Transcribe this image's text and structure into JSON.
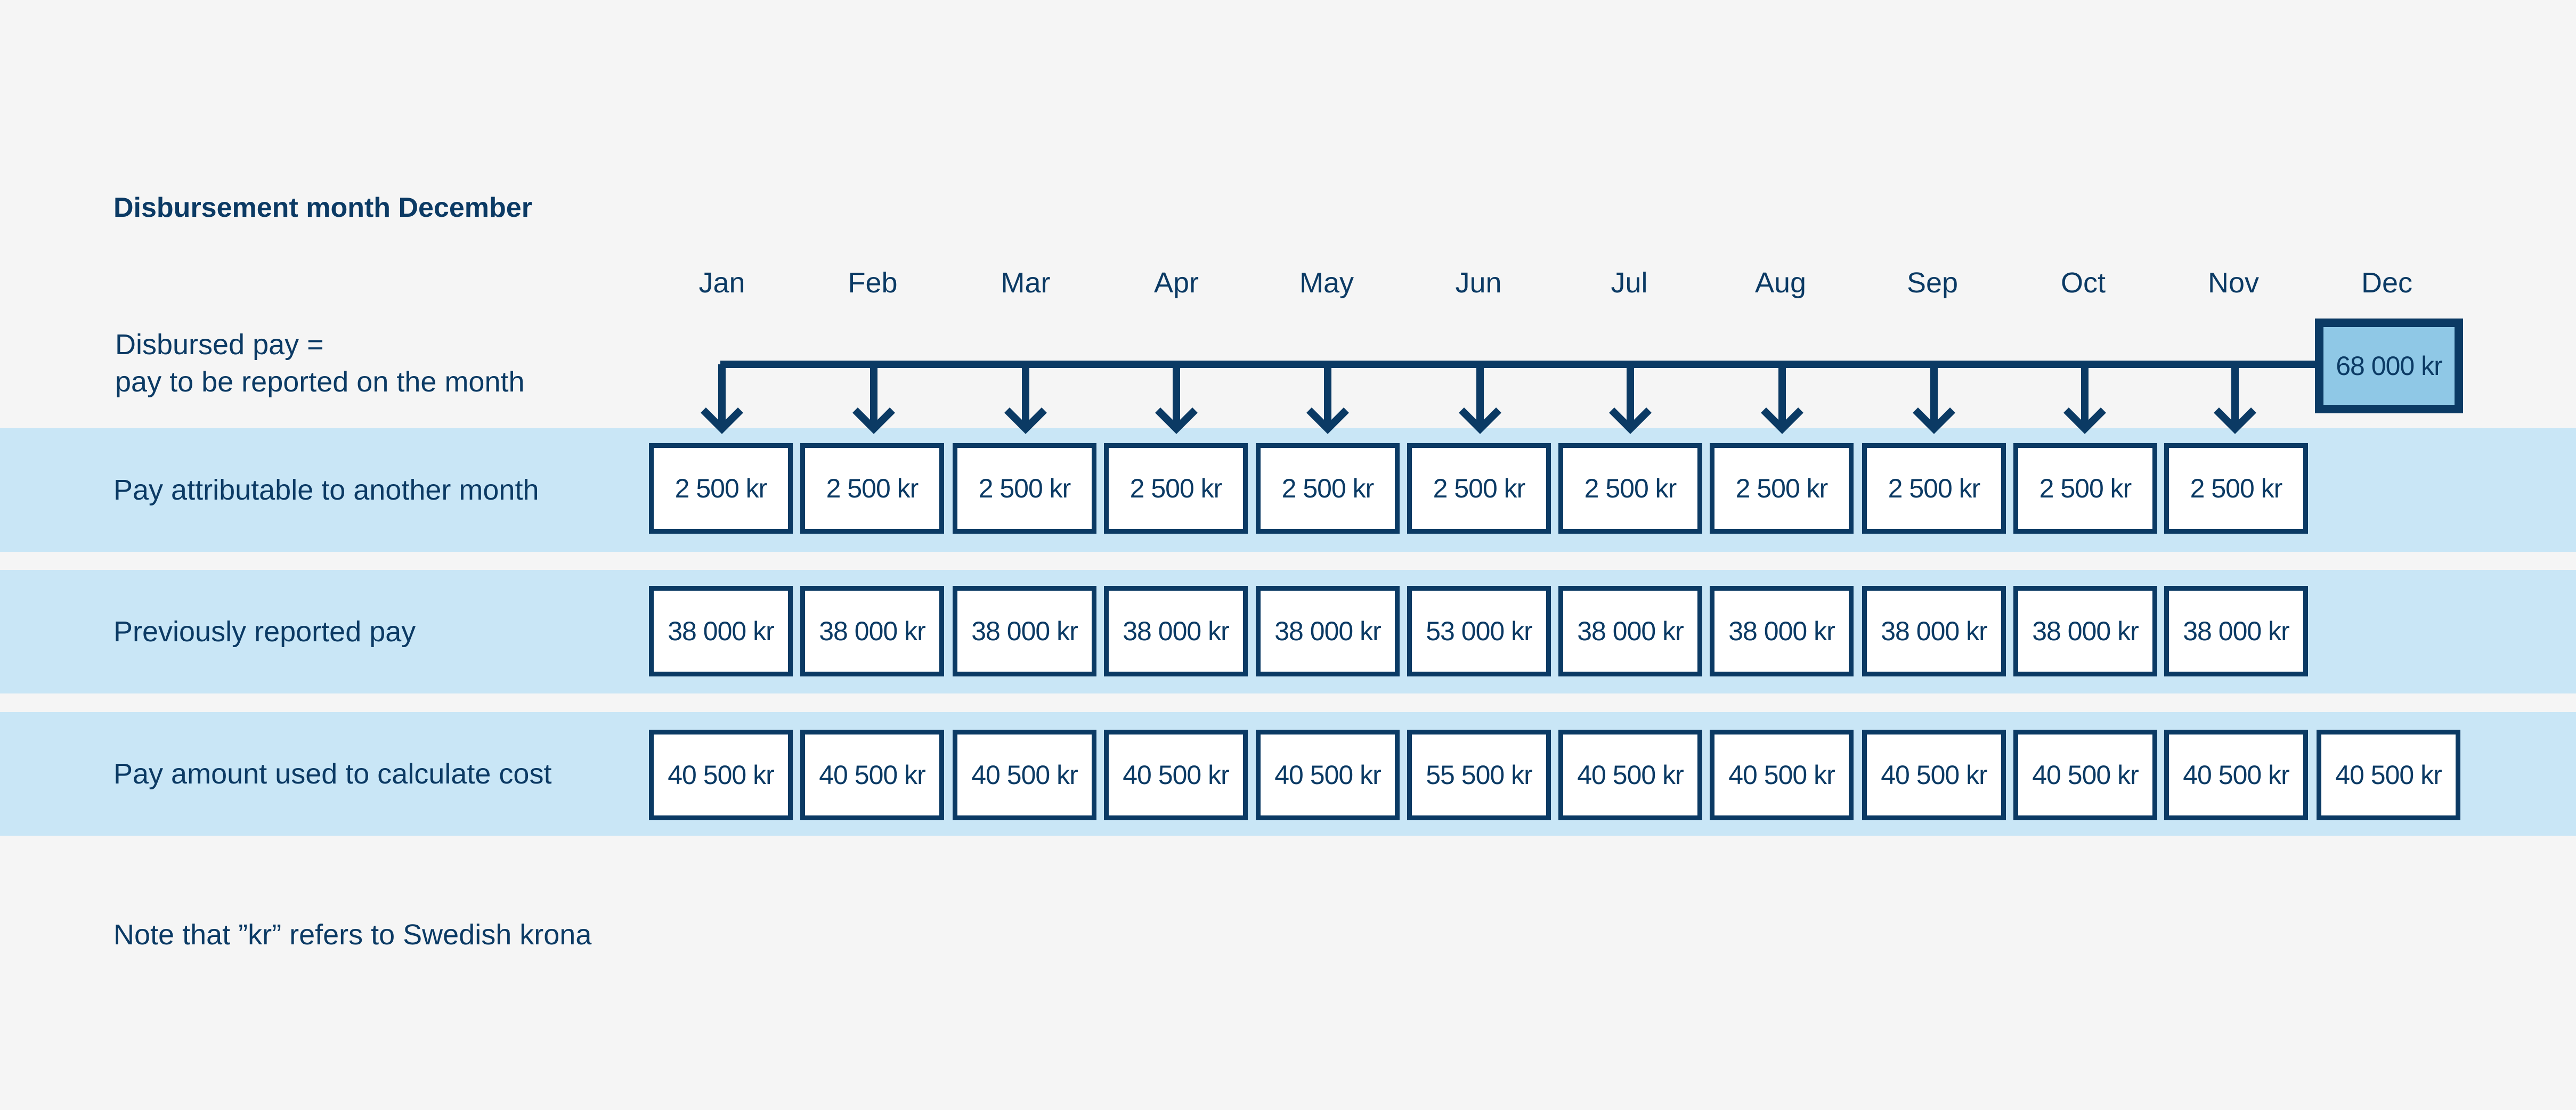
{
  "title": "Disbursement month December",
  "months": [
    "Jan",
    "Feb",
    "Mar",
    "Apr",
    "May",
    "Jun",
    "Jul",
    "Aug",
    "Sep",
    "Oct",
    "Nov",
    "Dec"
  ],
  "disbursed": {
    "label_line1": "Disbursed pay =",
    "label_line2": "pay to be reported on the month",
    "value": "68 000 kr"
  },
  "rows": [
    {
      "label": "Pay attributable to another month",
      "values": [
        "2 500 kr",
        "2 500 kr",
        "2 500 kr",
        "2 500 kr",
        "2 500 kr",
        "2 500 kr",
        "2 500 kr",
        "2 500 kr",
        "2 500 kr",
        "2 500 kr",
        "2 500 kr"
      ]
    },
    {
      "label": "Previously reported pay",
      "values": [
        "38 000 kr",
        "38 000 kr",
        "38 000 kr",
        "38 000 kr",
        "38 000 kr",
        "53 000 kr",
        "38 000 kr",
        "38 000 kr",
        "38 000 kr",
        "38 000 kr",
        "38 000 kr"
      ]
    },
    {
      "label": "Pay amount used to calculate cost",
      "values": [
        "40 500 kr",
        "40 500 kr",
        "40 500 kr",
        "40 500 kr",
        "40 500 kr",
        "55 500 kr",
        "40 500 kr",
        "40 500 kr",
        "40 500 kr",
        "40 500 kr",
        "40 500 kr",
        "40 500 kr"
      ]
    }
  ],
  "note": "Note that ”kr” refers to Swedish krona",
  "colors": {
    "navy": "#0b3a64",
    "band": "#c9e6f6",
    "highlight": "#8fc8e6",
    "background": "#f5f5f5"
  }
}
